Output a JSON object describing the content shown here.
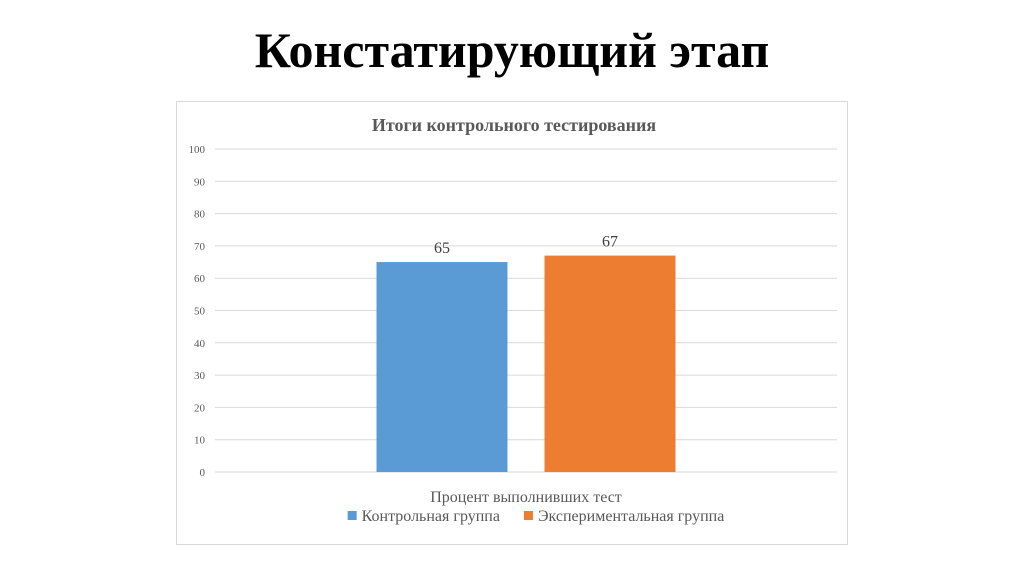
{
  "slide": {
    "title": "Констатирующий этап"
  },
  "chart_data": {
    "type": "bar",
    "title": "Итоги контрольного тестирования",
    "categories": [
      "Процент выполнивших тест"
    ],
    "series": [
      {
        "name": "Контрольная группа",
        "values": [
          65
        ],
        "color": "#5b9bd5"
      },
      {
        "name": "Экспериментальная группа",
        "values": [
          67
        ],
        "color": "#ed7d31"
      }
    ],
    "ylim": [
      0,
      100
    ],
    "yticks": [
      0,
      10,
      20,
      30,
      40,
      50,
      60,
      70,
      80,
      90,
      100
    ],
    "grid": true,
    "legend": "bottom",
    "data_labels": true,
    "xlabel": "",
    "ylabel": ""
  }
}
